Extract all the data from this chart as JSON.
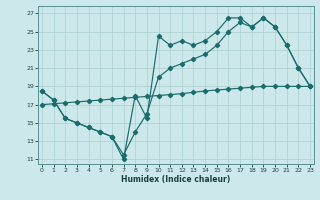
{
  "xlabel": "Humidex (Indice chaleur)",
  "bg_color": "#cce8ea",
  "grid_color": "#aacfcf",
  "line_color": "#1a6b6b",
  "xlim_min": -0.3,
  "xlim_max": 23.3,
  "ylim_min": 10.5,
  "ylim_max": 27.8,
  "xticks": [
    0,
    1,
    2,
    3,
    4,
    5,
    6,
    7,
    8,
    9,
    10,
    11,
    12,
    13,
    14,
    15,
    16,
    17,
    18,
    19,
    20,
    21,
    22,
    23
  ],
  "yticks": [
    11,
    13,
    15,
    17,
    19,
    21,
    23,
    25,
    27
  ],
  "line_jagged_x": [
    0,
    1,
    2,
    3,
    4,
    5,
    6,
    7,
    8,
    9,
    10,
    11,
    12,
    13,
    14,
    15,
    16,
    17,
    18,
    19,
    20,
    21,
    22,
    23
  ],
  "line_jagged_y": [
    18.5,
    17.5,
    15.5,
    15.0,
    14.5,
    14.0,
    13.5,
    11.0,
    18.0,
    15.5,
    24.5,
    23.5,
    24.0,
    23.5,
    24.0,
    25.0,
    26.5,
    26.5,
    25.5,
    26.5,
    25.5,
    23.5,
    21.0,
    19.0
  ],
  "line_mid_x": [
    0,
    1,
    2,
    3,
    4,
    5,
    6,
    7,
    8,
    9,
    10,
    11,
    12,
    13,
    14,
    15,
    16,
    17,
    18,
    19,
    20,
    21,
    22,
    23
  ],
  "line_mid_y": [
    18.5,
    17.5,
    15.5,
    15.0,
    14.5,
    14.0,
    13.5,
    11.5,
    14.0,
    16.0,
    20.0,
    21.0,
    21.5,
    22.0,
    22.5,
    23.5,
    25.0,
    26.0,
    25.5,
    26.5,
    25.5,
    23.5,
    21.0,
    19.0
  ],
  "line_straight_x": [
    0,
    1,
    2,
    3,
    4,
    5,
    6,
    7,
    8,
    9,
    10,
    11,
    12,
    13,
    14,
    15,
    16,
    17,
    18,
    19,
    20,
    21,
    22,
    23
  ],
  "line_straight_y": [
    17.0,
    17.1,
    17.2,
    17.3,
    17.4,
    17.5,
    17.6,
    17.7,
    17.8,
    17.9,
    18.0,
    18.1,
    18.2,
    18.35,
    18.5,
    18.6,
    18.7,
    18.8,
    18.9,
    19.0,
    19.0,
    19.0,
    19.0,
    19.0
  ]
}
